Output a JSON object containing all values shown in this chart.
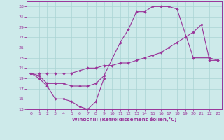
{
  "xlabel": "Windchill (Refroidissement éolien,°C)",
  "bg_color": "#cdeaea",
  "grid_color": "#aad4d4",
  "line_color": "#993399",
  "xlim": [
    -0.5,
    23.5
  ],
  "ylim": [
    13,
    34
  ],
  "xticks": [
    0,
    1,
    2,
    3,
    4,
    5,
    6,
    7,
    8,
    9,
    10,
    11,
    12,
    13,
    14,
    15,
    16,
    17,
    18,
    19,
    20,
    21,
    22,
    23
  ],
  "yticks": [
    13,
    15,
    17,
    19,
    21,
    23,
    25,
    27,
    29,
    31,
    33
  ],
  "line1": {
    "x": [
      0,
      1,
      2,
      3,
      4,
      5,
      6,
      7,
      8,
      9
    ],
    "y": [
      20,
      19,
      17.5,
      15,
      15,
      14.5,
      13.5,
      13,
      14.5,
      19
    ]
  },
  "line2": {
    "x": [
      0,
      1,
      2,
      3,
      4,
      5,
      6,
      7,
      8,
      9,
      11,
      12,
      13,
      14,
      15,
      16,
      17,
      18,
      20,
      22,
      23
    ],
    "y": [
      20,
      19.5,
      18,
      18,
      18,
      17.5,
      17.5,
      17.5,
      18,
      19.5,
      26,
      28.5,
      32,
      32,
      33,
      33,
      33,
      32.5,
      23,
      23,
      22.5
    ]
  },
  "line3": {
    "x": [
      0,
      1,
      2,
      3,
      4,
      5,
      6,
      7,
      8,
      9,
      10,
      11,
      12,
      13,
      14,
      15,
      16,
      17,
      18,
      19,
      20,
      21,
      22,
      23
    ],
    "y": [
      20,
      20,
      20,
      20,
      20,
      20,
      20.5,
      21,
      21,
      21.5,
      21.5,
      22,
      22,
      22.5,
      23,
      23.5,
      24,
      25,
      26,
      27,
      28,
      29.5,
      22.5,
      22.5
    ]
  }
}
